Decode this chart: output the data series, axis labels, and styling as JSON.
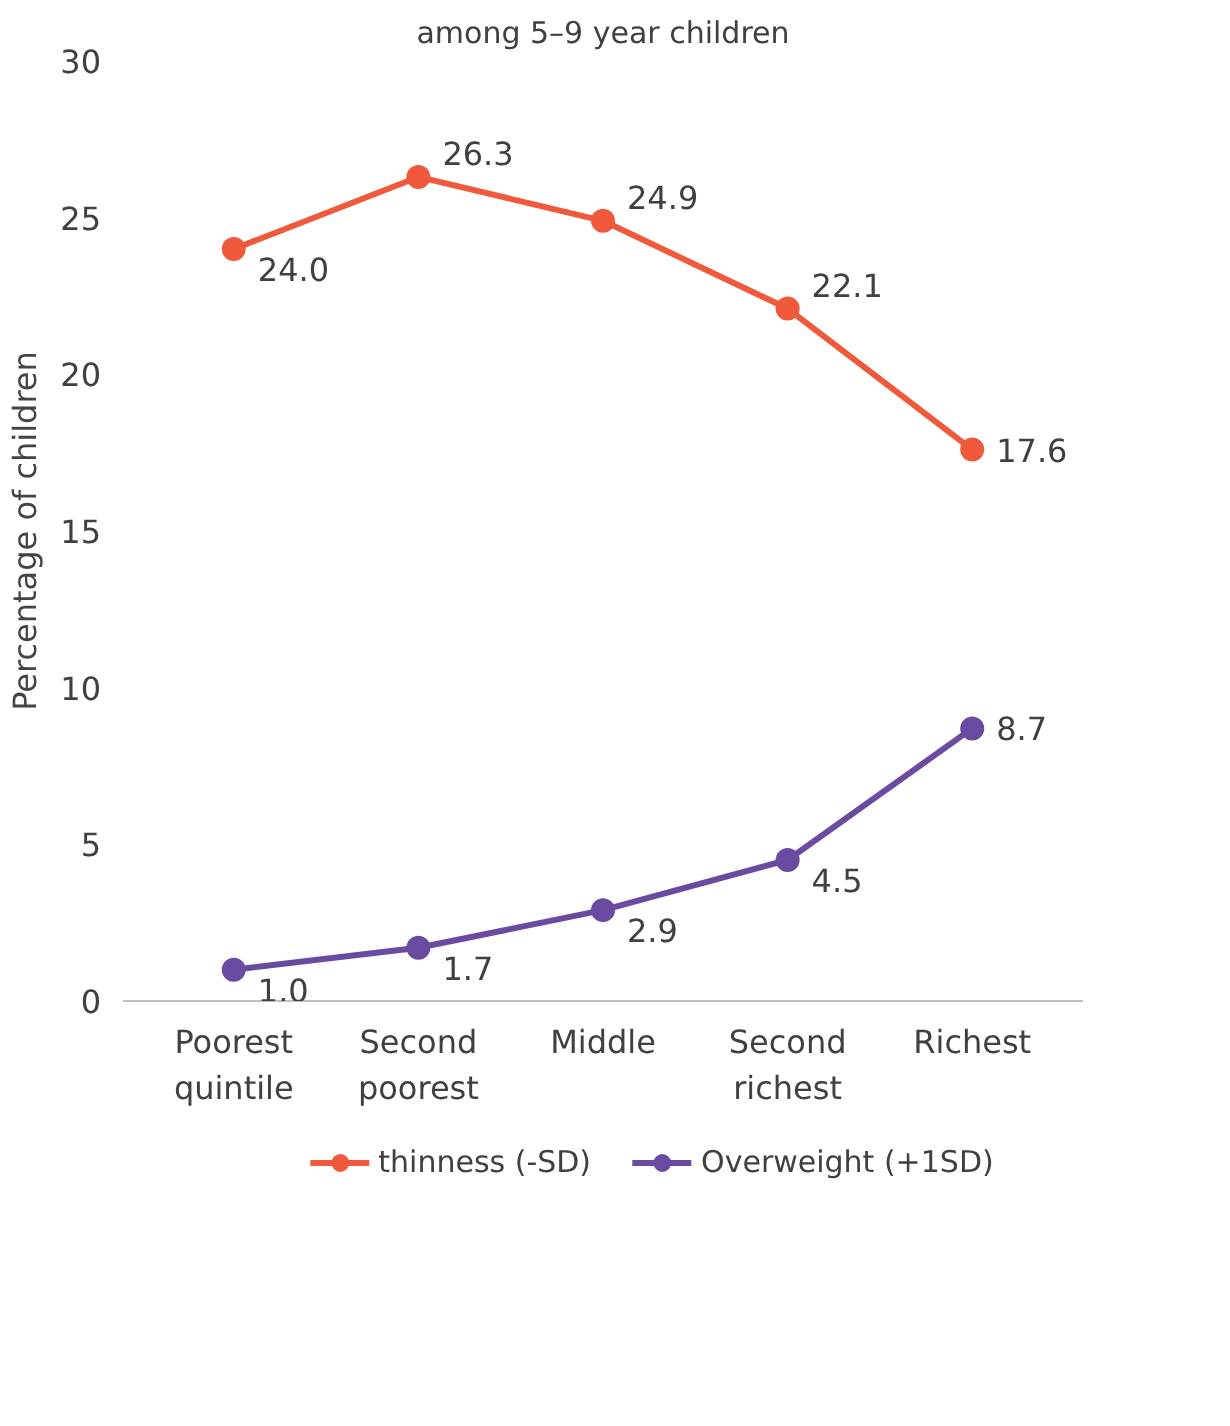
{
  "chart_data": {
    "type": "line",
    "title": "among 5–9 year children",
    "ylabel": "Percentage of children",
    "categories": [
      "Poorest\nquintile",
      "Second\npoorest",
      "Middle",
      "Second\nrichest",
      "Richest"
    ],
    "series": [
      {
        "name": "thinness (-SD)",
        "color": "#f0593c",
        "values": [
          24.0,
          26.3,
          24.9,
          22.1,
          17.6
        ],
        "value_labels": [
          "24.0",
          "26.3",
          "24.9",
          "22.1",
          "17.6"
        ]
      },
      {
        "name": "Overweight (+1SD)",
        "color": "#6b4ba1",
        "values": [
          1.0,
          1.7,
          2.9,
          4.5,
          8.7
        ],
        "value_labels": [
          "1.0",
          "1.7",
          "2.9",
          "4.5",
          "8.7"
        ]
      }
    ],
    "ylim": [
      0,
      30
    ],
    "yticks": [
      0,
      5,
      10,
      15,
      20,
      25,
      30
    ],
    "grid": false,
    "legend": "bottom",
    "marker": "circle",
    "line_style": "solid"
  }
}
